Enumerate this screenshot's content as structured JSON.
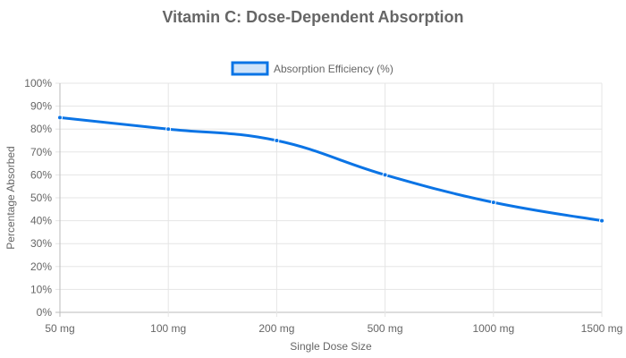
{
  "chart_data": {
    "type": "line",
    "title": "Vitamin C: Dose-Dependent Absorption",
    "xlabel": "Single Dose Size",
    "ylabel": "Percentage Absorbed",
    "categories": [
      "50 mg",
      "100 mg",
      "200 mg",
      "500 mg",
      "1000 mg",
      "1500 mg"
    ],
    "series": [
      {
        "name": "Absorption Efficiency (%)",
        "values": [
          85,
          80,
          75,
          60,
          48,
          40
        ],
        "color": "#0b74e5",
        "fill": "#cfe3f9"
      }
    ],
    "ylim": [
      0,
      100
    ],
    "yticks": [
      "0%",
      "10%",
      "20%",
      "30%",
      "40%",
      "50%",
      "60%",
      "70%",
      "80%",
      "90%",
      "100%"
    ],
    "grid": true,
    "legend": "top-center"
  }
}
